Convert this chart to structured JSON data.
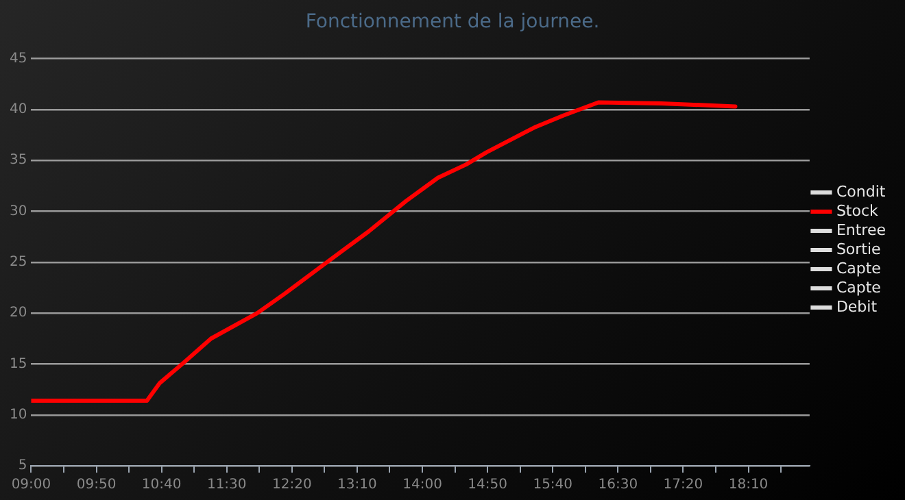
{
  "chart_data": {
    "type": "line",
    "title": "Fonctionnement de la journee.",
    "xlim": [
      9,
      18.95
    ],
    "xticks": [
      {
        "value": 9,
        "label": "09:00"
      },
      {
        "value": 9.4167,
        "label": null
      },
      {
        "value": 9.8333,
        "label": "09:50"
      },
      {
        "value": 10.25,
        "label": null
      },
      {
        "value": 10.6667,
        "label": "10:40"
      },
      {
        "value": 11.0833,
        "label": null
      },
      {
        "value": 11.5,
        "label": "11:30"
      },
      {
        "value": 11.9167,
        "label": null
      },
      {
        "value": 12.3333,
        "label": "12:20"
      },
      {
        "value": 12.75,
        "label": null
      },
      {
        "value": 13.1667,
        "label": "13:10"
      },
      {
        "value": 13.5833,
        "label": null
      },
      {
        "value": 14,
        "label": "14:00"
      },
      {
        "value": 14.4167,
        "label": null
      },
      {
        "value": 14.8333,
        "label": "14:50"
      },
      {
        "value": 15.25,
        "label": null
      },
      {
        "value": 15.6667,
        "label": "15:40"
      },
      {
        "value": 16.0833,
        "label": null
      },
      {
        "value": 16.5,
        "label": "16:30"
      },
      {
        "value": 16.9167,
        "label": null
      },
      {
        "value": 17.3333,
        "label": "17:20"
      },
      {
        "value": 17.75,
        "label": null
      },
      {
        "value": 18.1667,
        "label": "18:10"
      },
      {
        "value": 18.5833,
        "label": null
      }
    ],
    "ylim": [
      5,
      45
    ],
    "yticks": [
      5,
      10,
      15,
      20,
      25,
      30,
      35,
      40,
      45
    ],
    "grid": "y",
    "legend": "right",
    "marker": "none",
    "line_style": "solid",
    "series": [
      {
        "name": "Condit",
        "color": "#dddddd"
      },
      {
        "name": "Stock",
        "color": "#ff0000",
        "x": [
          9,
          10.48,
          10.64,
          10.96,
          11.3,
          11.89,
          12.24,
          12.78,
          13.31,
          13.79,
          14.2,
          14.56,
          14.82,
          15.45,
          15.8,
          16.25,
          17.05,
          18.0
        ],
        "values": [
          11.4,
          11.4,
          13.1,
          15.2,
          17.5,
          20.0,
          21.9,
          25.0,
          28.0,
          31.0,
          33.3,
          34.6,
          35.8,
          38.3,
          39.4,
          40.7,
          40.6,
          40.3
        ]
      },
      {
        "name": "Entree",
        "color": "#dddddd"
      },
      {
        "name": "Sortie",
        "color": "#dddddd"
      },
      {
        "name": "Capte",
        "color": "#dddddd"
      },
      {
        "name": "Capte",
        "color": "#dddddd"
      },
      {
        "name": "Debit",
        "color": "#dddddd"
      }
    ]
  }
}
